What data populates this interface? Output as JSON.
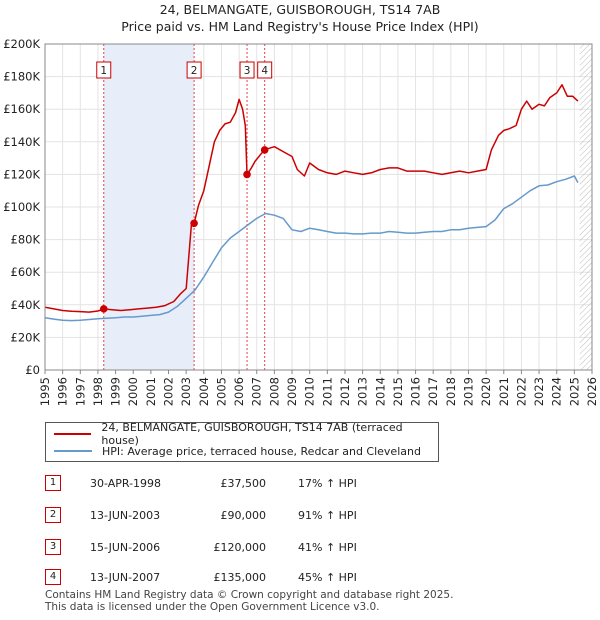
{
  "title_line1": "24, BELMANGATE, GUISBOROUGH, TS14 7AB",
  "title_line2": "Price paid vs. HM Land Registry's House Price Index (HPI)",
  "chart_data": {
    "type": "line",
    "xlim": [
      1995,
      2026
    ],
    "ylim": [
      0,
      200000
    ],
    "y_ticks": [
      0,
      20000,
      40000,
      60000,
      80000,
      100000,
      120000,
      140000,
      160000,
      180000,
      200000
    ],
    "y_tick_labels": [
      "£0",
      "£20K",
      "£40K",
      "£60K",
      "£80K",
      "£100K",
      "£120K",
      "£140K",
      "£160K",
      "£180K",
      "£200K"
    ],
    "x_ticks": [
      1995,
      1996,
      1997,
      1998,
      1999,
      2000,
      2001,
      2002,
      2003,
      2004,
      2005,
      2006,
      2007,
      2008,
      2009,
      2010,
      2011,
      2012,
      2013,
      2014,
      2015,
      2016,
      2017,
      2018,
      2019,
      2020,
      2021,
      2022,
      2023,
      2024,
      2025,
      2026
    ],
    "x_tick_labels": [
      "1995",
      "1996",
      "1997",
      "1998",
      "1999",
      "2000",
      "2001",
      "2002",
      "2003",
      "2004",
      "2005",
      "2006",
      "2007",
      "2008",
      "2009",
      "2010",
      "2011",
      "2012",
      "2013",
      "2014",
      "2015",
      "2016",
      "2017",
      "2018",
      "2019",
      "2020",
      "2021",
      "2022",
      "2023",
      "2024",
      "2025",
      "2026"
    ],
    "shaded_periods": [
      [
        1998.33,
        2003.45
      ]
    ],
    "future_hatch_from": 2025.3,
    "series": [
      {
        "name": "24, BELMANGATE, GUISBOROUGH, TS14 7AB (terraced house)",
        "color": "#cc0000",
        "x": [
          1995.0,
          1995.5,
          1996.0,
          1996.5,
          1997.0,
          1997.5,
          1998.0,
          1998.33,
          1998.8,
          1999.3,
          1999.8,
          2000.3,
          2000.8,
          2001.3,
          2001.8,
          2002.3,
          2002.7,
          2003.0,
          2003.3,
          2003.45,
          2003.7,
          2004.0,
          2004.3,
          2004.6,
          2004.9,
          2005.2,
          2005.5,
          2005.8,
          2006.0,
          2006.2,
          2006.35,
          2006.45,
          2006.7,
          2006.9,
          2007.2,
          2007.45,
          2007.7,
          2008.0,
          2008.5,
          2009.0,
          2009.3,
          2009.7,
          2010.0,
          2010.5,
          2011.0,
          2011.5,
          2012.0,
          2012.5,
          2013.0,
          2013.5,
          2014.0,
          2014.5,
          2015.0,
          2015.5,
          2016.0,
          2016.5,
          2017.0,
          2017.5,
          2018.0,
          2018.5,
          2019.0,
          2019.5,
          2020.0,
          2020.3,
          2020.7,
          2021.0,
          2021.3,
          2021.7,
          2022.0,
          2022.3,
          2022.6,
          2023.0,
          2023.3,
          2023.6,
          2024.0,
          2024.3,
          2024.6,
          2024.9,
          2025.2
        ],
        "values": [
          38500,
          37500,
          36500,
          36000,
          35800,
          35500,
          36200,
          37500,
          37000,
          36500,
          37000,
          37500,
          38000,
          38500,
          39500,
          42000,
          47000,
          50000,
          90000,
          90000,
          101000,
          110000,
          125000,
          140000,
          147000,
          151000,
          152000,
          158000,
          166000,
          160000,
          150000,
          120000,
          124000,
          128000,
          132000,
          135000,
          136000,
          137000,
          134000,
          131000,
          123000,
          119000,
          127000,
          123000,
          121000,
          120000,
          122000,
          121000,
          120000,
          121000,
          123000,
          124000,
          124000,
          122000,
          122000,
          122000,
          121000,
          120000,
          121000,
          122000,
          121000,
          122000,
          123000,
          135000,
          144000,
          147000,
          148000,
          150000,
          160000,
          165000,
          160000,
          163000,
          162000,
          167000,
          170000,
          175000,
          168000,
          168000,
          165000
        ]
      },
      {
        "name": "HPI: Average price, terraced house, Redcar and Cleveland",
        "color": "#6699cc",
        "x": [
          1995.0,
          1995.5,
          1996.0,
          1996.5,
          1997.0,
          1997.5,
          1998.0,
          1998.5,
          1999.0,
          1999.5,
          2000.0,
          2000.5,
          2001.0,
          2001.5,
          2002.0,
          2002.5,
          2003.0,
          2003.5,
          2004.0,
          2004.5,
          2005.0,
          2005.5,
          2006.0,
          2006.5,
          2007.0,
          2007.5,
          2008.0,
          2008.5,
          2009.0,
          2009.5,
          2010.0,
          2010.5,
          2011.0,
          2011.5,
          2012.0,
          2012.5,
          2013.0,
          2013.5,
          2014.0,
          2014.5,
          2015.0,
          2015.5,
          2016.0,
          2016.5,
          2017.0,
          2017.5,
          2018.0,
          2018.5,
          2019.0,
          2019.5,
          2020.0,
          2020.5,
          2021.0,
          2021.5,
          2022.0,
          2022.5,
          2023.0,
          2023.5,
          2024.0,
          2024.5,
          2025.0,
          2025.2
        ],
        "values": [
          32000,
          31200,
          30500,
          30300,
          30500,
          31000,
          31500,
          31800,
          32000,
          32500,
          32500,
          33000,
          33500,
          34000,
          35500,
          39000,
          44000,
          49000,
          57000,
          66000,
          75000,
          81000,
          85000,
          89000,
          93000,
          96000,
          95000,
          93000,
          86000,
          85000,
          87000,
          86000,
          85000,
          84000,
          84000,
          83500,
          83500,
          84000,
          84000,
          85000,
          84500,
          84000,
          84000,
          84500,
          85000,
          85000,
          86000,
          86000,
          87000,
          87500,
          88000,
          92000,
          99000,
          102000,
          106000,
          110000,
          113000,
          113500,
          115500,
          117000,
          119000,
          115000
        ]
      }
    ],
    "sale_markers": [
      {
        "label": "1",
        "x": 1998.33,
        "y": 37500
      },
      {
        "label": "2",
        "x": 2003.45,
        "y": 90000
      },
      {
        "label": "3",
        "x": 2006.45,
        "y": 120000
      },
      {
        "label": "4",
        "x": 2007.45,
        "y": 135000
      }
    ]
  },
  "legend": {
    "property_label": "24, BELMANGATE, GUISBOROUGH, TS14 7AB (terraced house)",
    "hpi_label": "HPI: Average price, terraced house, Redcar and Cleveland",
    "property_color": "#cc0000",
    "hpi_color": "#6699cc"
  },
  "sales": [
    {
      "num": "1",
      "date": "30-APR-1998",
      "price": "£37,500",
      "hpi": "17% ↑ HPI"
    },
    {
      "num": "2",
      "date": "13-JUN-2003",
      "price": "£90,000",
      "hpi": "91% ↑ HPI"
    },
    {
      "num": "3",
      "date": "15-JUN-2006",
      "price": "£120,000",
      "hpi": "41% ↑ HPI"
    },
    {
      "num": "4",
      "date": "13-JUN-2007",
      "price": "£135,000",
      "hpi": "45% ↑ HPI"
    }
  ],
  "footer": {
    "line1": "Contains HM Land Registry data © Crown copyright and database right 2025.",
    "line2": "This data is licensed under the Open Government Licence v3.0."
  }
}
